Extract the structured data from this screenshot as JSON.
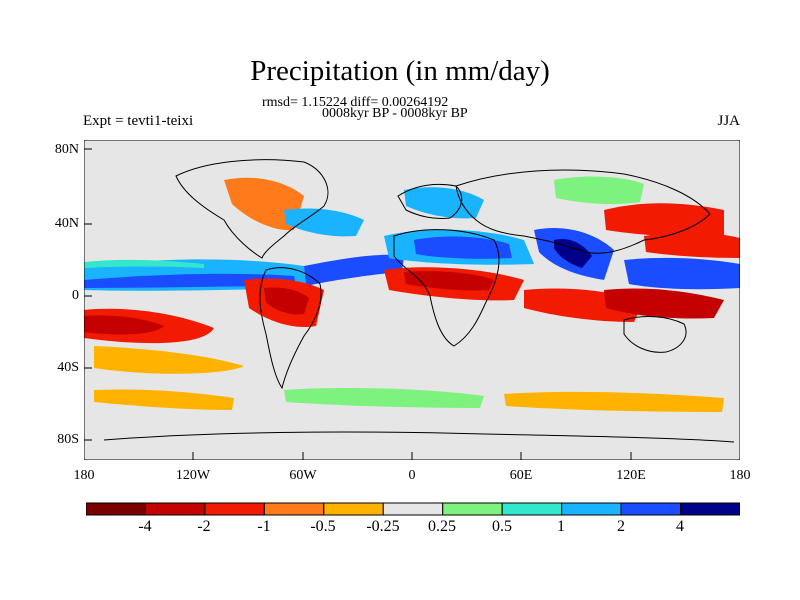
{
  "title": "Precipitation (in mm/day)",
  "stats": "rmsd= 1.15224 diff= 0.00264192",
  "period": "0008kyr BP - 0008kyr BP",
  "experiment": "Expt = tevti1-teixi",
  "season": "JJA",
  "map": {
    "lon_labels": [
      "180",
      "120W",
      "60W",
      "0",
      "60E",
      "120E",
      "180"
    ],
    "lat_labels": [
      "80N",
      "40N",
      "0",
      "40S",
      "80S"
    ],
    "ocean_color": "#e6e6e6"
  },
  "colorbar": {
    "colors": [
      "#7a0000",
      "#c40000",
      "#f21a00",
      "#ff7a1a",
      "#ffb300",
      "#e6e6e6",
      "#7ef27e",
      "#33e6cc",
      "#1ab3ff",
      "#1a4dff",
      "#00008b"
    ],
    "labels": [
      "-4",
      "-2",
      "-1",
      "-0.5",
      "-0.25",
      "0.25",
      "0.5",
      "1",
      "2",
      "4"
    ]
  }
}
